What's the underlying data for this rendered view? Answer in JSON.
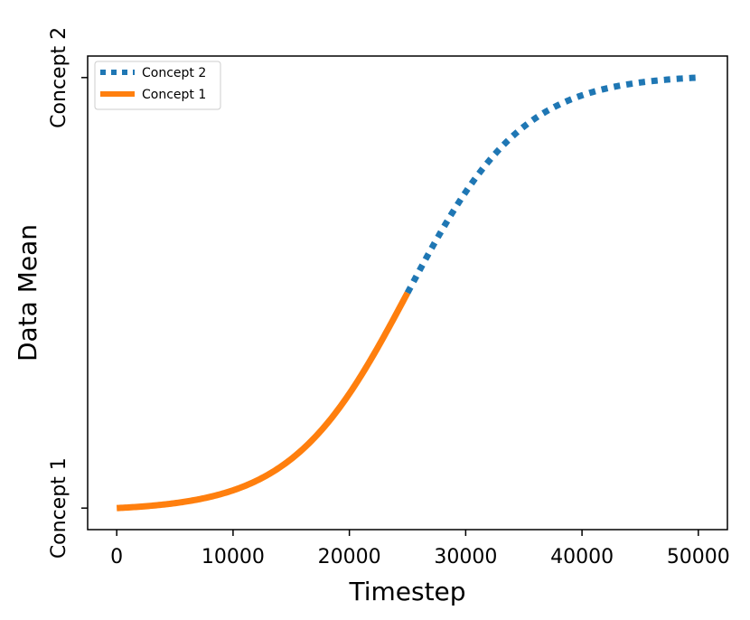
{
  "chart_data": {
    "type": "line",
    "xlabel": "Timestep",
    "ylabel": "Data Mean",
    "xlim": [
      -2500,
      52500
    ],
    "ylim": [
      -0.05,
      1.05
    ],
    "x_ticks": [
      0,
      10000,
      20000,
      30000,
      40000,
      50000
    ],
    "x_tick_labels": [
      "0",
      "10000",
      "20000",
      "30000",
      "40000",
      "50000"
    ],
    "y_ticks": [
      0,
      1
    ],
    "y_tick_labels": [
      "Concept 1",
      "Concept 2"
    ],
    "grid": false,
    "legend_position": "top-left",
    "curve": {
      "function": "logistic",
      "center": 25000,
      "width": 5000,
      "x_start": 0,
      "x_end": 50000
    },
    "series": [
      {
        "name": "Concept 2",
        "color": "#1f77b4",
        "style": "dotted",
        "x_range": [
          25000,
          50000
        ]
      },
      {
        "name": "Concept 1",
        "color": "#ff7f0e",
        "style": "solid",
        "x_range": [
          0,
          25000
        ]
      }
    ]
  }
}
